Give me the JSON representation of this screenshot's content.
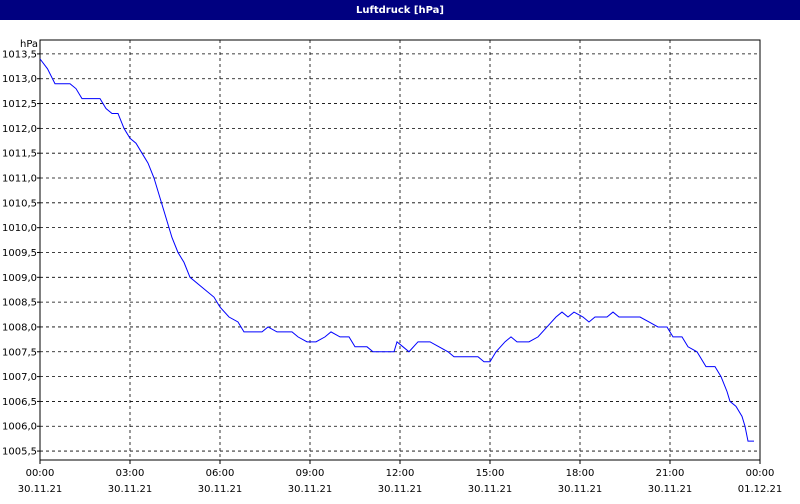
{
  "chart_data": {
    "type": "line",
    "title": "Luftdruck [hPa]",
    "ylabel": "hPa",
    "xlim": [
      0,
      24
    ],
    "ylim": [
      1005.32,
      1013.78
    ],
    "grid": true,
    "xticks": [
      {
        "value": 0,
        "label": "00:00",
        "date": "30.11.21"
      },
      {
        "value": 3,
        "label": "03:00",
        "date": "30.11.21"
      },
      {
        "value": 6,
        "label": "06:00",
        "date": "30.11.21"
      },
      {
        "value": 9,
        "label": "09:00",
        "date": "30.11.21"
      },
      {
        "value": 12,
        "label": "12:00",
        "date": "30.11.21"
      },
      {
        "value": 15,
        "label": "15:00",
        "date": "30.11.21"
      },
      {
        "value": 18,
        "label": "18:00",
        "date": "30.11.21"
      },
      {
        "value": 21,
        "label": "21:00",
        "date": "30.11.21"
      },
      {
        "value": 24,
        "label": "00:00",
        "date": "01.12.21"
      }
    ],
    "yticks": [
      {
        "value": 1005.5,
        "label": "1005,5"
      },
      {
        "value": 1006,
        "label": "1006,0"
      },
      {
        "value": 1006.5,
        "label": "1006,5"
      },
      {
        "value": 1007,
        "label": "1007,0"
      },
      {
        "value": 1007.5,
        "label": "1007,5"
      },
      {
        "value": 1008,
        "label": "1008,0"
      },
      {
        "value": 1008.5,
        "label": "1008,5"
      },
      {
        "value": 1009,
        "label": "1009,0"
      },
      {
        "value": 1009.5,
        "label": "1009,5"
      },
      {
        "value": 1010,
        "label": "1010,0"
      },
      {
        "value": 1010.5,
        "label": "1010,5"
      },
      {
        "value": 1011,
        "label": "1011,0"
      },
      {
        "value": 1011.5,
        "label": "1011,5"
      },
      {
        "value": 1012,
        "label": "1012,0"
      },
      {
        "value": 1012.5,
        "label": "1012,5"
      },
      {
        "value": 1013,
        "label": "1013,0"
      },
      {
        "value": 1013.5,
        "label": "1013,5"
      }
    ],
    "x": [
      0,
      0.25,
      0.5,
      1.0,
      1.2,
      1.4,
      2.0,
      2.2,
      2.4,
      2.6,
      2.8,
      3.0,
      3.2,
      3.4,
      3.6,
      3.8,
      4.0,
      4.2,
      4.4,
      4.6,
      4.8,
      5.0,
      5.4,
      5.8,
      6.0,
      6.3,
      6.6,
      6.8,
      7.4,
      7.6,
      7.9,
      8.4,
      8.6,
      8.9,
      9.2,
      9.5,
      9.7,
      10.0,
      10.3,
      10.5,
      10.9,
      11.1,
      11.6,
      11.8,
      11.9,
      12.1,
      12.3,
      12.6,
      13.0,
      13.3,
      13.6,
      13.8,
      14.6,
      14.8,
      15.0,
      15.2,
      15.5,
      15.7,
      15.9,
      16.3,
      16.6,
      16.9,
      17.2,
      17.4,
      17.6,
      17.8,
      18.1,
      18.3,
      18.5,
      18.9,
      19.1,
      19.3,
      20.0,
      20.3,
      20.6,
      20.9,
      21.1,
      21.4,
      21.6,
      21.9,
      22.2,
      22.5,
      22.7,
      22.9,
      23.0,
      23.2,
      23.4,
      23.5,
      23.6,
      23.8
    ],
    "series": [
      {
        "name": "Luftdruck",
        "color": "#0000ff",
        "values": [
          1013.4,
          1013.2,
          1012.9,
          1012.9,
          1012.8,
          1012.6,
          1012.6,
          1012.4,
          1012.3,
          1012.3,
          1012.0,
          1011.8,
          1011.7,
          1011.5,
          1011.3,
          1011.0,
          1010.6,
          1010.2,
          1009.8,
          1009.5,
          1009.3,
          1009.0,
          1008.8,
          1008.6,
          1008.4,
          1008.2,
          1008.1,
          1007.9,
          1007.9,
          1008.0,
          1007.9,
          1007.9,
          1007.8,
          1007.7,
          1007.7,
          1007.8,
          1007.9,
          1007.8,
          1007.8,
          1007.6,
          1007.6,
          1007.5,
          1007.5,
          1007.5,
          1007.7,
          1007.6,
          1007.5,
          1007.7,
          1007.7,
          1007.6,
          1007.5,
          1007.4,
          1007.4,
          1007.3,
          1007.3,
          1007.5,
          1007.7,
          1007.8,
          1007.7,
          1007.7,
          1007.8,
          1008.0,
          1008.2,
          1008.3,
          1008.2,
          1008.3,
          1008.2,
          1008.1,
          1008.2,
          1008.2,
          1008.3,
          1008.2,
          1008.2,
          1008.1,
          1008.0,
          1008.0,
          1007.8,
          1007.8,
          1007.6,
          1007.5,
          1007.2,
          1007.2,
          1007.0,
          1006.7,
          1006.5,
          1006.4,
          1006.2,
          1006.0,
          1005.7,
          1005.7
        ]
      }
    ]
  }
}
